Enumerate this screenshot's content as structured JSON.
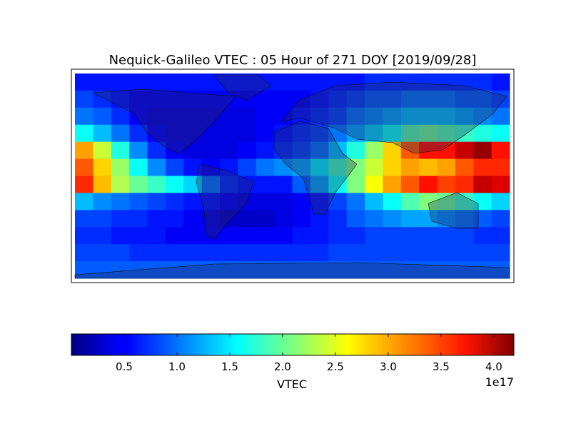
{
  "chart_data": {
    "type": "heatmap",
    "title": "Nequick-Galileo VTEC : 05 Hour of 271 DOY [2019/09/28]",
    "x": [
      -172.5,
      -157.5,
      -142.5,
      -127.5,
      -112.5,
      -97.5,
      -82.5,
      -67.5,
      -52.5,
      -37.5,
      -22.5,
      -7.5,
      7.5,
      22.5,
      37.5,
      52.5,
      67.5,
      82.5,
      97.5,
      112.5,
      127.5,
      142.5,
      157.5,
      172.5
    ],
    "y": [
      82.5,
      67.5,
      52.5,
      37.5,
      22.5,
      7.5,
      -7.5,
      -22.5,
      -37.5,
      -52.5,
      -67.5,
      -82.5
    ],
    "xlim": [
      -180,
      180
    ],
    "ylim": [
      -90,
      90
    ],
    "values": [
      [
        0.6,
        0.6,
        0.6,
        0.6,
        0.6,
        0.6,
        0.6,
        0.6,
        0.6,
        0.6,
        0.6,
        0.6,
        0.6,
        0.6,
        0.6,
        0.6,
        0.7,
        0.7,
        0.7,
        0.7,
        0.7,
        0.7,
        0.7,
        0.6
      ],
      [
        0.8,
        0.7,
        0.6,
        0.5,
        0.5,
        0.5,
        0.5,
        0.5,
        0.5,
        0.5,
        0.5,
        0.5,
        0.5,
        0.6,
        0.7,
        0.8,
        0.9,
        0.9,
        1.0,
        1.0,
        1.0,
        0.9,
        0.9,
        0.8
      ],
      [
        1.0,
        0.9,
        0.7,
        0.5,
        0.4,
        0.4,
        0.4,
        0.4,
        0.4,
        0.4,
        0.5,
        0.5,
        0.6,
        0.7,
        0.8,
        1.0,
        1.1,
        1.2,
        1.3,
        1.3,
        1.3,
        1.2,
        1.1,
        1.0
      ],
      [
        1.6,
        1.3,
        1.0,
        0.7,
        0.5,
        0.4,
        0.4,
        0.4,
        0.4,
        0.4,
        0.5,
        0.6,
        0.7,
        0.8,
        1.0,
        1.2,
        1.4,
        1.6,
        1.9,
        2.0,
        1.9,
        1.8,
        1.7,
        1.6
      ],
      [
        3.0,
        2.4,
        1.7,
        1.1,
        0.7,
        0.5,
        0.4,
        0.4,
        0.4,
        0.5,
        0.6,
        0.7,
        0.8,
        1.0,
        1.3,
        1.7,
        2.2,
        2.8,
        3.3,
        3.6,
        3.6,
        3.9,
        4.1,
        3.6
      ],
      [
        3.3,
        2.8,
        2.2,
        1.6,
        1.1,
        0.8,
        0.6,
        0.5,
        0.6,
        0.8,
        1.0,
        1.1,
        1.2,
        1.5,
        1.8,
        2.1,
        2.4,
        2.8,
        3.0,
        2.9,
        3.0,
        3.3,
        3.5,
        3.5
      ],
      [
        3.5,
        2.9,
        2.3,
        2.0,
        1.8,
        1.6,
        1.4,
        1.0,
        0.7,
        0.6,
        0.6,
        0.6,
        0.9,
        1.2,
        1.6,
        2.1,
        2.6,
        3.0,
        3.3,
        3.6,
        3.4,
        3.5,
        3.9,
        3.8
      ],
      [
        1.3,
        1.1,
        1.0,
        0.9,
        0.8,
        0.7,
        0.6,
        0.6,
        0.5,
        0.4,
        0.4,
        0.4,
        0.5,
        0.6,
        0.8,
        1.0,
        1.3,
        1.6,
        1.9,
        2.1,
        2.0,
        1.8,
        1.6,
        1.4
      ],
      [
        0.8,
        0.8,
        0.7,
        0.7,
        0.6,
        0.6,
        0.5,
        0.4,
        0.3,
        0.3,
        0.3,
        0.4,
        0.5,
        0.6,
        0.7,
        0.9,
        1.0,
        1.1,
        1.2,
        1.2,
        1.1,
        1.0,
        0.9,
        0.8
      ],
      [
        0.7,
        0.7,
        0.6,
        0.6,
        0.6,
        0.5,
        0.5,
        0.5,
        0.5,
        0.5,
        0.5,
        0.5,
        0.6,
        0.6,
        0.7,
        0.7,
        0.8,
        0.8,
        0.8,
        0.8,
        0.8,
        0.8,
        0.7,
        0.7
      ],
      [
        0.8,
        0.8,
        0.8,
        0.7,
        0.7,
        0.7,
        0.7,
        0.7,
        0.7,
        0.7,
        0.7,
        0.7,
        0.7,
        0.7,
        0.8,
        0.8,
        0.8,
        0.8,
        0.8,
        0.8,
        0.8,
        0.8,
        0.8,
        0.8
      ],
      [
        0.9,
        0.9,
        0.9,
        0.9,
        0.9,
        0.9,
        0.9,
        0.9,
        0.9,
        0.9,
        0.9,
        0.9,
        0.9,
        0.9,
        0.9,
        0.9,
        0.9,
        0.9,
        0.9,
        0.9,
        0.9,
        0.9,
        0.9,
        0.9
      ]
    ],
    "colormap": "jet",
    "clim": [
      0,
      4.19
    ],
    "cticks": [
      0.5,
      {
        "value": 1,
        "label": "1.0"
      },
      1.5,
      {
        "value": 2,
        "label": "2.0"
      },
      2.5,
      {
        "value": 3,
        "label": "3.0"
      },
      3.5,
      {
        "value": 4,
        "label": "4.0"
      }
    ],
    "colorbar_label": "VTEC",
    "colorbar_offset": "1e17"
  }
}
